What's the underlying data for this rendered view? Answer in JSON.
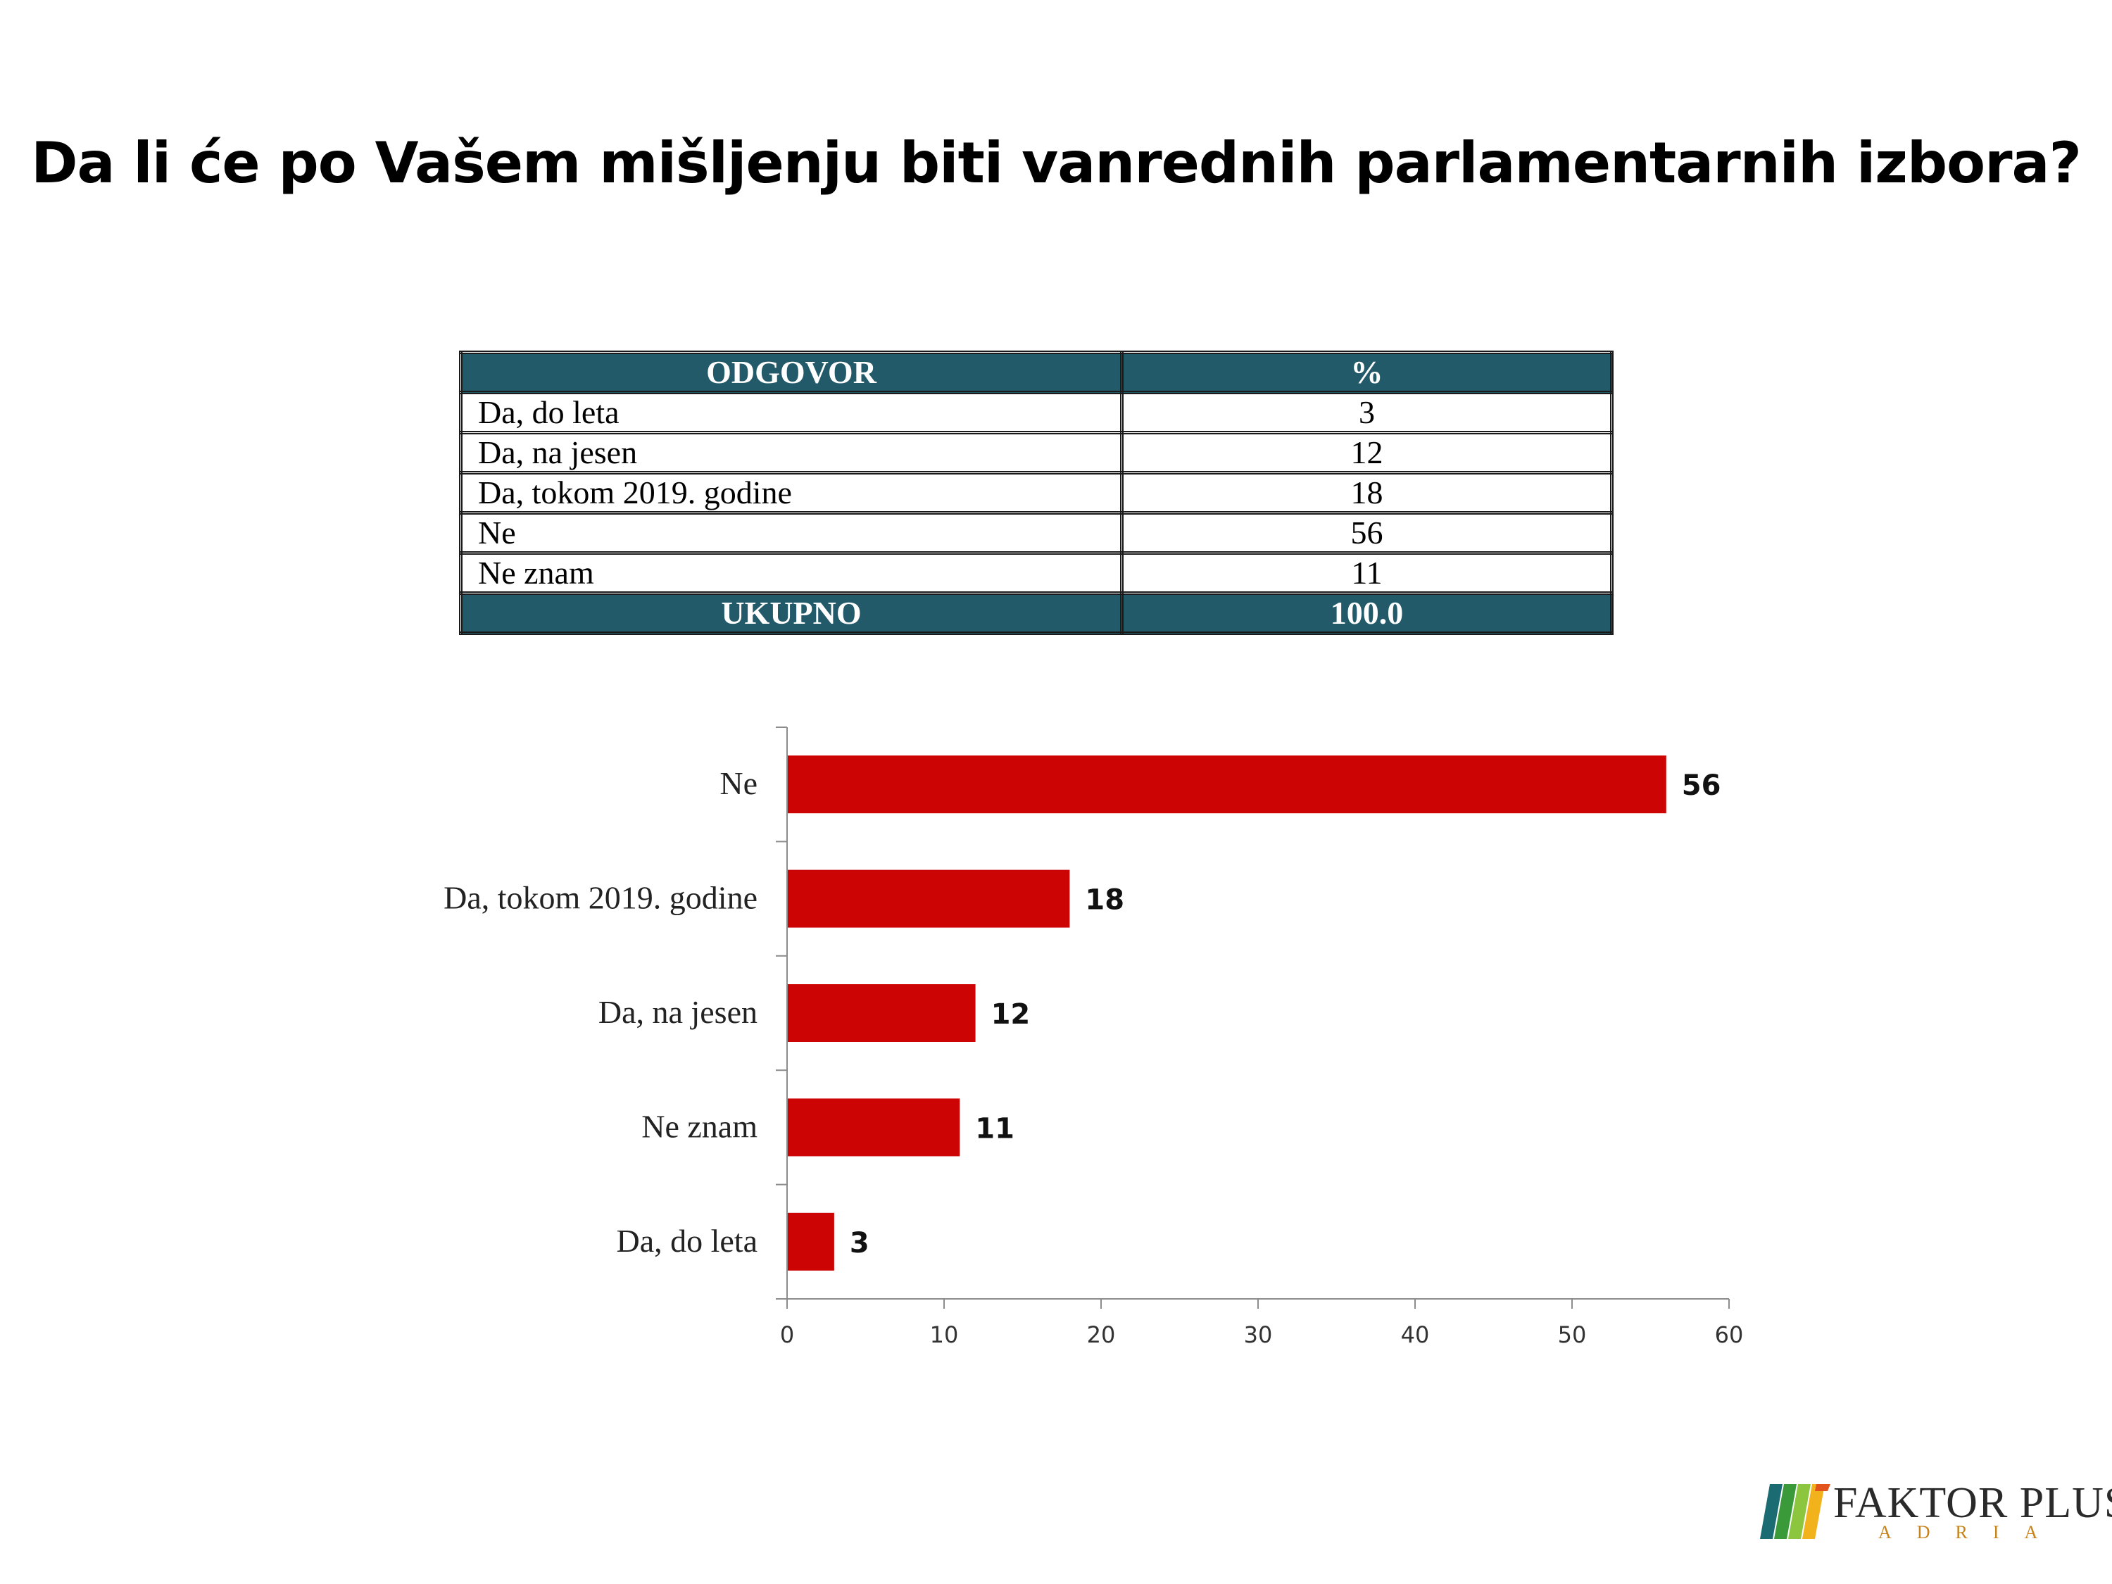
{
  "title": "Da li će po Vašem mišljenju biti vanrednih parlamentarnih izbora?",
  "table": {
    "headers": [
      "ODGOVOR",
      "%"
    ],
    "rows": [
      {
        "label": "Da, do leta",
        "value": "3"
      },
      {
        "label": "Da, na jesen",
        "value": "12"
      },
      {
        "label": "Da, tokom 2019. godine",
        "value": "18"
      },
      {
        "label": "Ne",
        "value": "56"
      },
      {
        "label": "Ne znam",
        "value": "11"
      }
    ],
    "total": {
      "label": "UKUPNO",
      "value": "100.0"
    }
  },
  "chart_data": {
    "type": "bar",
    "orientation": "horizontal",
    "categories": [
      "Ne",
      "Da, tokom 2019. godine",
      "Da, na jesen",
      "Ne znam",
      "Da, do leta"
    ],
    "values": [
      56,
      18,
      12,
      11,
      3
    ],
    "xlim": [
      0,
      60
    ],
    "xticks": [
      0,
      10,
      20,
      30,
      40,
      50,
      60
    ],
    "bar_color": "#cc0404",
    "data_labels": true,
    "title": "",
    "xlabel": "",
    "ylabel": ""
  },
  "logo": {
    "name": "FAKTOR PLUS",
    "sub": "ADRIA",
    "colors": [
      "#1b6b72",
      "#3a9a3a",
      "#8cc63f",
      "#f2b21b",
      "#e3541c"
    ]
  },
  "colors": {
    "header_bg": "#225a69",
    "bar": "#cc0404"
  }
}
